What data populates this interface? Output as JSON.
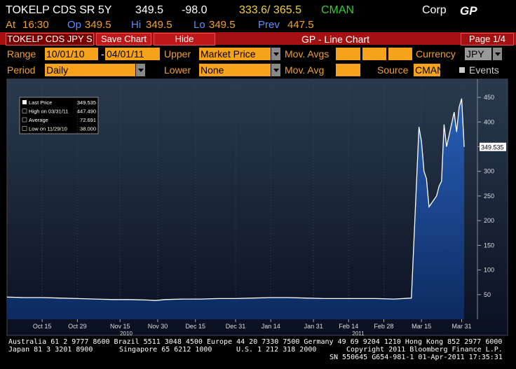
{
  "header": {
    "ticker": "TOKELP CDS SR 5Y",
    "last": "349.5",
    "change": "-98.0",
    "bid_ask": "333.6/ 365.5",
    "source": "CMAN",
    "sector": "Corp",
    "function": "GP",
    "at_label": "At",
    "at": "16:30",
    "op_label": "Op",
    "op": "349.5",
    "hi_label": "Hi",
    "hi": "349.5",
    "lo_label": "Lo",
    "lo": "349.5",
    "prev_label": "Prev",
    "prev": "447.5"
  },
  "toolbar": {
    "security": "TOKELP CDS JPY S",
    "save": "Save Chart",
    "hide": "Hide",
    "title": "GP - Line Chart",
    "page": "Page 1/4"
  },
  "settings": {
    "range_label": "Range",
    "start": "10/01/10",
    "dash": "-",
    "end": "04/01/11",
    "upper_label": "Upper",
    "upper": "Market Price",
    "mov_avgs_label": "Mov. Avgs",
    "currency_label": "Currency",
    "currency": "JPY",
    "period_label": "Period",
    "period": "Daily",
    "lower_label": "Lower",
    "lower": "None",
    "mov_avg_label": "Mov. Avg",
    "source_label": "Source",
    "source": "CMAN",
    "events": "Events"
  },
  "chart_data": {
    "type": "area",
    "x": [
      "2010-10-01",
      "2010-10-08",
      "2010-10-15",
      "2010-10-22",
      "2010-10-29",
      "2010-11-05",
      "2010-11-12",
      "2010-11-19",
      "2010-11-26",
      "2010-11-29",
      "2010-12-03",
      "2010-12-10",
      "2010-12-17",
      "2010-12-24",
      "2010-12-31",
      "2011-01-07",
      "2011-01-14",
      "2011-01-21",
      "2011-01-28",
      "2011-02-04",
      "2011-02-11",
      "2011-02-18",
      "2011-02-25",
      "2011-03-04",
      "2011-03-11",
      "2011-03-14",
      "2011-03-15",
      "2011-03-16",
      "2011-03-17",
      "2011-03-18",
      "2011-03-21",
      "2011-03-22",
      "2011-03-23",
      "2011-03-24",
      "2011-03-25",
      "2011-03-28",
      "2011-03-29",
      "2011-03-30",
      "2011-03-31",
      "2011-04-01"
    ],
    "series": [
      {
        "name": "Last Price",
        "color": "#ffffff",
        "values": [
          45,
          44,
          44,
          43,
          42,
          41,
          40,
          40,
          39,
          38,
          40,
          41,
          41,
          42,
          42,
          43,
          44,
          44,
          43,
          42,
          42,
          42,
          42,
          41,
          43,
          390,
          360,
          300,
          285,
          228,
          250,
          270,
          280,
          395,
          350,
          420,
          380,
          430,
          447.49,
          349.535
        ]
      }
    ],
    "xlim": [
      "2010-10-01",
      "2011-04-06"
    ],
    "xticks": [
      {
        "value": "2010-10-15",
        "label": "Oct 15"
      },
      {
        "value": "2010-10-29",
        "label": "Oct 29"
      },
      {
        "value": "2010-11-15",
        "label": "Nov 15"
      },
      {
        "value": "2010-11-30",
        "label": "Nov 30"
      },
      {
        "value": "2010-12-15",
        "label": "Dec 15"
      },
      {
        "value": "2010-12-31",
        "label": "Dec 31"
      },
      {
        "value": "2011-01-14",
        "label": "Jan 14"
      },
      {
        "value": "2011-01-31",
        "label": "Jan 31"
      },
      {
        "value": "2011-02-14",
        "label": "Feb 14"
      },
      {
        "value": "2011-02-28",
        "label": "Feb 28"
      },
      {
        "value": "2011-03-15",
        "label": "Mar 15"
      },
      {
        "value": "2011-03-31",
        "label": "Mar 31"
      }
    ],
    "x_year_labels": [
      "2010",
      "2011"
    ],
    "ylim": [
      0,
      487
    ],
    "yticks": [
      50,
      100,
      150,
      200,
      250,
      300,
      350,
      400,
      450
    ],
    "legend": [
      {
        "label": "Last Price",
        "value": "349.535"
      },
      {
        "label": "High on 03/31/11",
        "value": "447.490"
      },
      {
        "label": "Average",
        "value": "72.691"
      },
      {
        "label": "Low on 11/29/10",
        "value": "38.000"
      }
    ]
  },
  "footer": [
    "Australia 61 2 9777 8600 Brazil 5511 3048 4500 Europe 44 20 7330 7500 Germany 49 69 9204 1210 Hong Kong 852 2977 6000",
    "Japan 81 3 3201 8900",
    "Singapore 65 6212 1000",
    "U.S. 1 212 318 2000",
    "Copyright 2011 Bloomberg Finance L.P.",
    "SN 550645 G654-981-1 01-Apr-2011 17:35:31"
  ]
}
